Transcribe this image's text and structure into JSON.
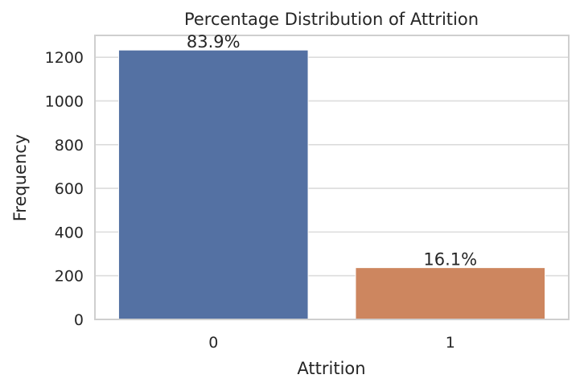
{
  "chart_data": {
    "type": "bar",
    "title": "Percentage Distribution of Attrition",
    "xlabel": "Attrition",
    "ylabel": "Frequency",
    "categories": [
      "0",
      "1"
    ],
    "values": [
      1233,
      237
    ],
    "data_labels": [
      "83.9%",
      "16.1%"
    ],
    "ylim": [
      0,
      1300
    ],
    "yticks": [
      0,
      200,
      400,
      600,
      800,
      1000,
      1200
    ],
    "ytick_labels": [
      "0",
      "200",
      "400",
      "600",
      "800",
      "1000",
      "1200"
    ],
    "grid": true,
    "colors": [
      "#5471a3",
      "#cd865f"
    ],
    "grid_color": "#dcdcdc",
    "axes_color": "#cfcfcf"
  }
}
